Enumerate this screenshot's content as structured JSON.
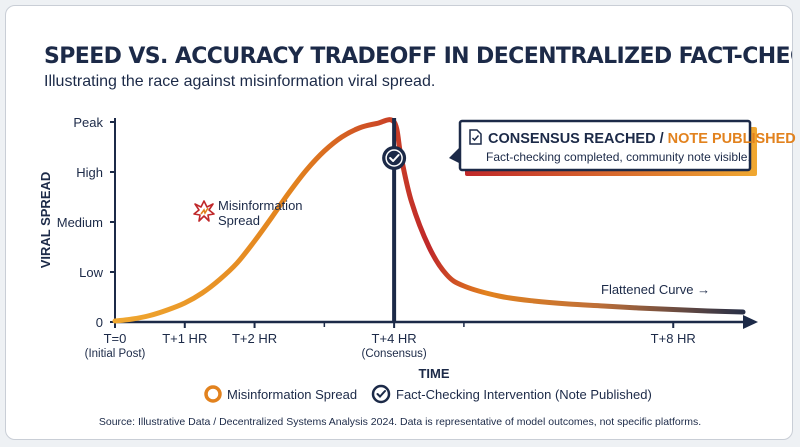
{
  "header": {
    "title": "SPEED VS. ACCURACY TRADEOFF IN DECENTRALIZED FACT-CHECKING",
    "subtitle": "Illustrating the race against misinformation viral spread."
  },
  "chart_data": {
    "type": "line",
    "xlabel": "TIME",
    "ylabel": "VIRAL SPREAD",
    "x_ticks": [
      {
        "x": 0,
        "label": "T=0",
        "sublabel": "(Initial Post)"
      },
      {
        "x": 1,
        "label": "T+1 HR",
        "sublabel": ""
      },
      {
        "x": 2,
        "label": "T+2 HR",
        "sublabel": ""
      },
      {
        "x": 4,
        "label": "T+4 HR",
        "sublabel": "(Consensus)"
      },
      {
        "x": 8,
        "label": "T+8 HR",
        "sublabel": ""
      }
    ],
    "x_minor_ticks": [
      3,
      5
    ],
    "xlim": [
      0,
      9.1
    ],
    "y_ticks": [
      {
        "y": 0,
        "label": "0"
      },
      {
        "y": 1,
        "label": "Low"
      },
      {
        "y": 2,
        "label": "Medium"
      },
      {
        "y": 3,
        "label": "High"
      },
      {
        "y": 4,
        "label": "Peak"
      }
    ],
    "ylim": [
      0,
      4
    ],
    "series": [
      {
        "name": "Misinformation Spread",
        "x": [
          0,
          0.25,
          0.5,
          0.75,
          1,
          1.25,
          1.5,
          1.75,
          2,
          2.25,
          2.5,
          2.75,
          3,
          3.25,
          3.5,
          3.75,
          4,
          4.1,
          4.25,
          4.5,
          4.75,
          5,
          5.5,
          6,
          6.5,
          7,
          7.5,
          8,
          8.5,
          9
        ],
        "y": [
          0.02,
          0.06,
          0.13,
          0.24,
          0.38,
          0.58,
          0.85,
          1.18,
          1.62,
          2.1,
          2.6,
          3.05,
          3.42,
          3.7,
          3.88,
          3.97,
          4.0,
          3.3,
          2.4,
          1.5,
          0.95,
          0.72,
          0.52,
          0.42,
          0.36,
          0.32,
          0.28,
          0.25,
          0.22,
          0.2
        ],
        "colors": [
          "#f0a830",
          "#e2821e",
          "#c0282a",
          "#8a2b2f",
          "#1c2a48"
        ]
      }
    ],
    "intervention": {
      "x": 4,
      "label": "Fact-Checking Intervention (Note Published)",
      "color": "#1c2a48"
    },
    "annotations": {
      "spread_label_line1": "Misinformation",
      "spread_label_line2": "Spread",
      "callout_part1": "CONSENSUS REACHED / ",
      "callout_part2": "NOTE PUBLISHED",
      "callout_sub": "Fact-checking completed, community note visible.",
      "flattened": "Flattened Curve →"
    },
    "legend": {
      "placement": "bottom",
      "items": [
        "Misinformation Spread",
        "Fact-Checking Intervention (Note Published)"
      ]
    },
    "grid": false
  },
  "footer": {
    "source": "Source: Illustrative Data / Decentralized Systems Analysis 2024. Data is representative of model outcomes, not specific platforms."
  }
}
